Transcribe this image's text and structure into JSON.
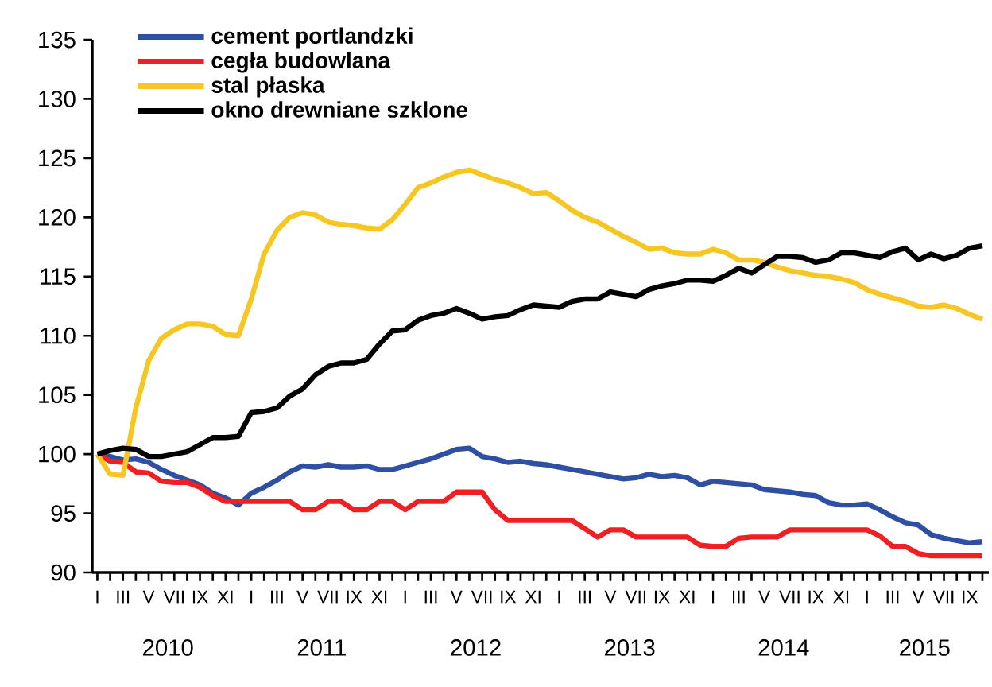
{
  "chart_data": {
    "type": "line",
    "categories": [
      "I",
      null,
      "III",
      null,
      "V",
      null,
      "VII",
      null,
      "IX",
      null,
      "XI",
      null,
      "I",
      null,
      "III",
      null,
      "V",
      null,
      "VII",
      null,
      "IX",
      null,
      "XI",
      null,
      "I",
      null,
      "III",
      null,
      "V",
      null,
      "VII",
      null,
      "IX",
      null,
      "XI",
      null,
      "I",
      null,
      "III",
      null,
      "V",
      null,
      "VII",
      null,
      "IX",
      null,
      "XI",
      null,
      "I",
      null,
      "III",
      null,
      "V",
      null,
      "VII",
      null,
      "IX",
      null,
      "XI",
      null,
      "I",
      null,
      "III",
      null,
      "V",
      null,
      "VII",
      null,
      "IX",
      null
    ],
    "series": [
      {
        "name": "cement portlandzki",
        "color": "#2f4fa2",
        "values": [
          100,
          99.8,
          99.5,
          99.6,
          99.3,
          98.7,
          98.2,
          97.8,
          97.4,
          96.7,
          96.3,
          95.7,
          96.7,
          97.2,
          97.8,
          98.5,
          99.0,
          98.9,
          99.1,
          98.9,
          98.9,
          99.0,
          98.7,
          98.7,
          99.0,
          99.3,
          99.6,
          100.0,
          100.4,
          100.5,
          99.8,
          99.6,
          99.3,
          99.4,
          99.2,
          99.1,
          98.9,
          98.7,
          98.5,
          98.3,
          98.1,
          97.9,
          98.0,
          98.3,
          98.1,
          98.2,
          98.0,
          97.4,
          97.7,
          97.6,
          97.5,
          97.4,
          97.0,
          96.9,
          96.8,
          96.6,
          96.5,
          95.9,
          95.7,
          95.7,
          95.8,
          95.3,
          94.7,
          94.2,
          94.0,
          93.2,
          92.9,
          92.7,
          92.5,
          92.6
        ]
      },
      {
        "name": "cegła budowlana",
        "color": "#ee2024",
        "values": [
          100,
          99.4,
          99.3,
          98.5,
          98.4,
          97.7,
          97.6,
          97.6,
          97.2,
          96.5,
          96.0,
          96.0,
          96.0,
          96.0,
          96.0,
          96.0,
          95.3,
          95.3,
          96.0,
          96.0,
          95.3,
          95.3,
          96.0,
          96.0,
          95.3,
          96.0,
          96.0,
          96.0,
          96.8,
          96.8,
          96.8,
          95.3,
          94.4,
          94.4,
          94.4,
          94.4,
          94.4,
          94.4,
          93.7,
          93.0,
          93.6,
          93.6,
          93.0,
          93.0,
          93.0,
          93.0,
          93.0,
          92.3,
          92.2,
          92.2,
          92.9,
          93.0,
          93.0,
          93.0,
          93.6,
          93.6,
          93.6,
          93.6,
          93.6,
          93.6,
          93.6,
          93.1,
          92.2,
          92.2,
          91.6,
          91.4,
          91.4,
          91.4,
          91.4,
          91.4
        ]
      },
      {
        "name": "stal płaska",
        "color": "#f6c623",
        "values": [
          100,
          98.3,
          98.2,
          103.9,
          107.9,
          109.8,
          110.5,
          111.0,
          111.0,
          110.8,
          110.1,
          110.0,
          113.1,
          116.9,
          118.9,
          120.0,
          120.4,
          120.2,
          119.6,
          119.4,
          119.3,
          119.1,
          119.0,
          119.8,
          121.1,
          122.5,
          122.9,
          123.4,
          123.8,
          124.0,
          123.6,
          123.2,
          122.9,
          122.5,
          122.0,
          122.1,
          121.4,
          120.6,
          120.0,
          119.6,
          119.0,
          118.4,
          117.9,
          117.3,
          117.4,
          117.0,
          116.9,
          116.9,
          117.3,
          117.0,
          116.4,
          116.4,
          116.2,
          115.8,
          115.5,
          115.3,
          115.1,
          115.0,
          114.8,
          114.5,
          113.9,
          113.5,
          113.2,
          112.9,
          112.5,
          112.4,
          112.6,
          112.3,
          111.8,
          111.4
        ]
      },
      {
        "name": "okno drewniane szklone",
        "color": "#000000",
        "values": [
          100,
          100.3,
          100.5,
          100.4,
          99.8,
          99.8,
          100.0,
          100.2,
          100.8,
          101.4,
          101.4,
          101.5,
          103.5,
          103.6,
          103.9,
          104.9,
          105.5,
          106.7,
          107.4,
          107.7,
          107.7,
          108.0,
          109.3,
          110.4,
          110.5,
          111.3,
          111.7,
          111.9,
          112.3,
          111.9,
          111.4,
          111.6,
          111.7,
          112.2,
          112.6,
          112.5,
          112.4,
          112.9,
          113.1,
          113.1,
          113.7,
          113.5,
          113.3,
          113.9,
          114.2,
          114.4,
          114.7,
          114.7,
          114.6,
          115.1,
          115.7,
          115.3,
          116.0,
          116.7,
          116.7,
          116.6,
          116.2,
          116.4,
          117.0,
          117.0,
          116.8,
          116.6,
          117.1,
          117.4,
          116.4,
          116.9,
          116.5,
          116.8,
          117.4,
          117.6
        ]
      }
    ],
    "ylim": [
      90,
      135
    ],
    "yticks": [
      90,
      95,
      100,
      105,
      110,
      115,
      120,
      125,
      130,
      135
    ],
    "legend": "top left",
    "annotations": [
      "2010",
      "2011",
      "2012",
      "2013",
      "2014",
      "2015"
    ]
  }
}
